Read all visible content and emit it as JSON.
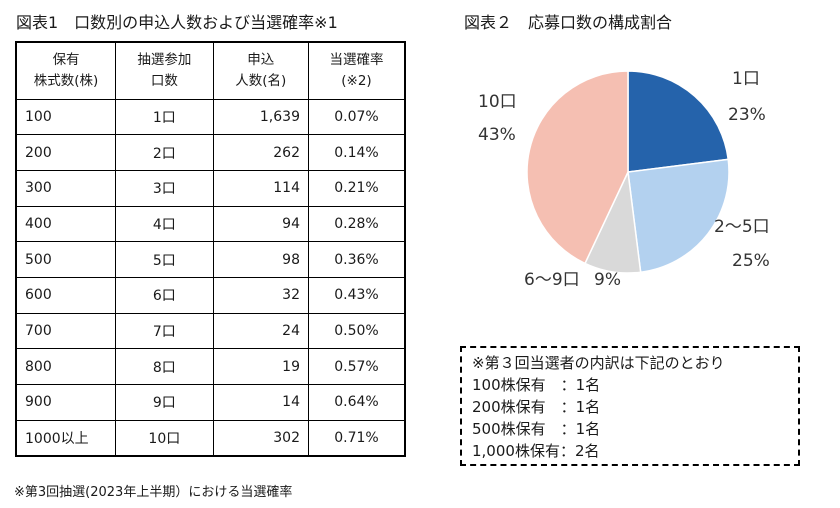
{
  "table_title": "図表1　口数別の申込人数および当選確率※1",
  "table": {
    "headers": [
      [
        "保有",
        "株式数(株)"
      ],
      [
        "抽選参加",
        "口数"
      ],
      [
        "申込",
        "人数(名)"
      ],
      [
        "当選確率",
        "(※2)"
      ]
    ],
    "rows": [
      [
        "100",
        "1口",
        "1,639",
        "0.07%"
      ],
      [
        "200",
        "2口",
        "262",
        "0.14%"
      ],
      [
        "300",
        "3口",
        "114",
        "0.21%"
      ],
      [
        "400",
        "4口",
        "94",
        "0.28%"
      ],
      [
        "500",
        "5口",
        "98",
        "0.36%"
      ],
      [
        "600",
        "6口",
        "32",
        "0.43%"
      ],
      [
        "700",
        "7口",
        "24",
        "0.50%"
      ],
      [
        "800",
        "8口",
        "19",
        "0.57%"
      ],
      [
        "900",
        "9口",
        "14",
        "0.64%"
      ],
      [
        "1000以上",
        "10口",
        "302",
        "0.71%"
      ]
    ]
  },
  "footnote": "※第3回抽選(2023年上半期）における当選確率",
  "note": {
    "heading": "※第３回当選者の内訳は下記のとおり",
    "lines": [
      "100株保有　：1名",
      "200株保有　：1名",
      "500株保有　：1名",
      "1,000株保有：2名"
    ]
  },
  "chart_data": {
    "type": "pie",
    "title": "図表２　応募口数の構成割合",
    "slices": [
      {
        "label": "1口",
        "value": 23,
        "value_label": "23%",
        "color": "#2563ab"
      },
      {
        "label": "2～5口",
        "value": 25,
        "value_label": "25%",
        "color": "#b3d1ef"
      },
      {
        "label": "6～9口",
        "value": 9,
        "value_label": "9%",
        "color": "#d9d9d9"
      },
      {
        "label": "10口",
        "value": 43,
        "value_label": "43%",
        "color": "#f5bfb2"
      }
    ]
  }
}
